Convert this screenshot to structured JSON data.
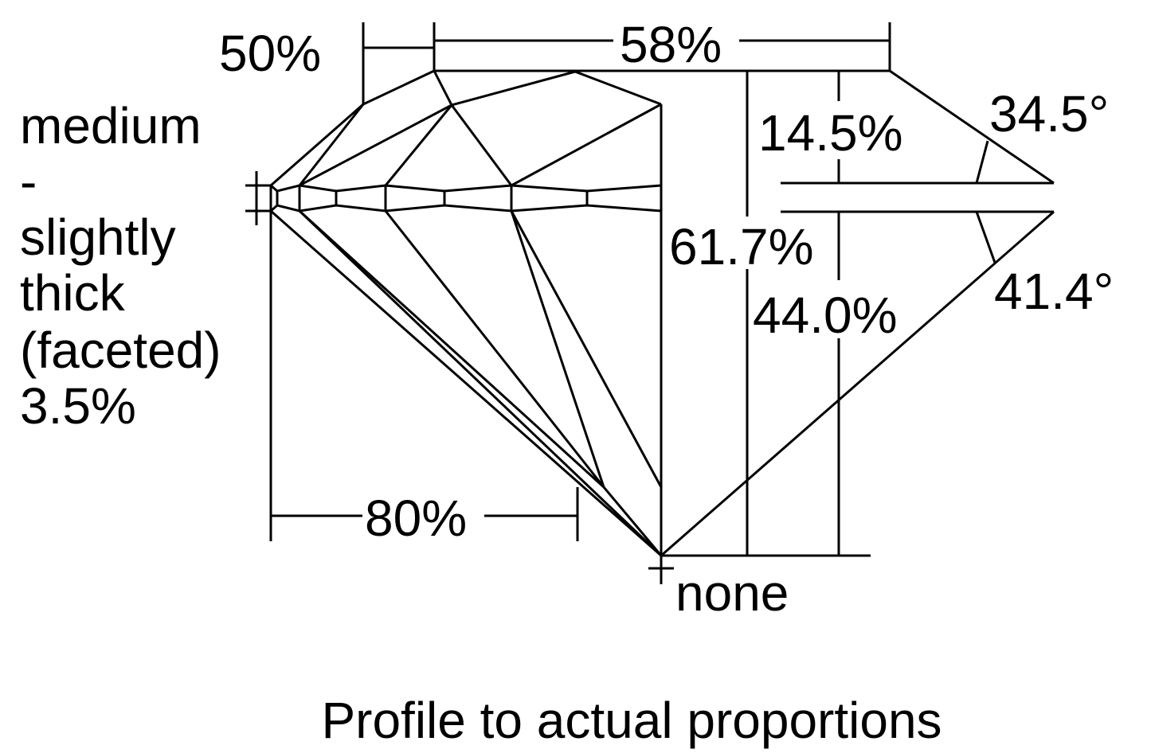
{
  "labels": {
    "crown_height_pct_label": "50%",
    "table_pct": "58%",
    "crown_height": "14.5%",
    "crown_angle": "34.5°",
    "total_depth": "61.7%",
    "pavilion_angle": "41.4°",
    "pavilion_depth": "44.0%",
    "culet": "none",
    "lower_half_length": "80%"
  },
  "girdle": {
    "lines": [
      "medium",
      "-",
      "slightly",
      "thick",
      "(faceted)",
      "3.5%"
    ]
  },
  "caption": "Profile to actual proportions"
}
